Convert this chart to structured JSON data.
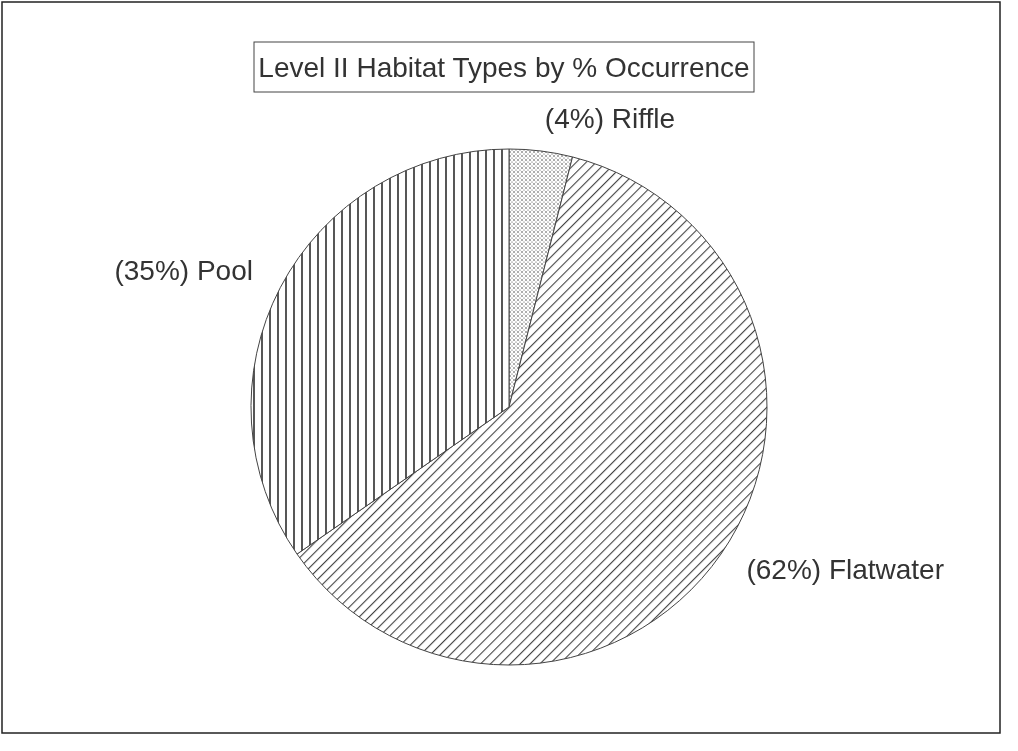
{
  "chart_data": {
    "type": "pie",
    "title": "Level II Habitat Types by % Occurrence",
    "categories": [
      "Riffle",
      "Flatwater",
      "Pool"
    ],
    "values": [
      4,
      62,
      35
    ],
    "value_labels": [
      "(4%)",
      "(62%)",
      "(35%)"
    ],
    "colors": [
      "#444444",
      "#444444",
      "#444444"
    ]
  }
}
